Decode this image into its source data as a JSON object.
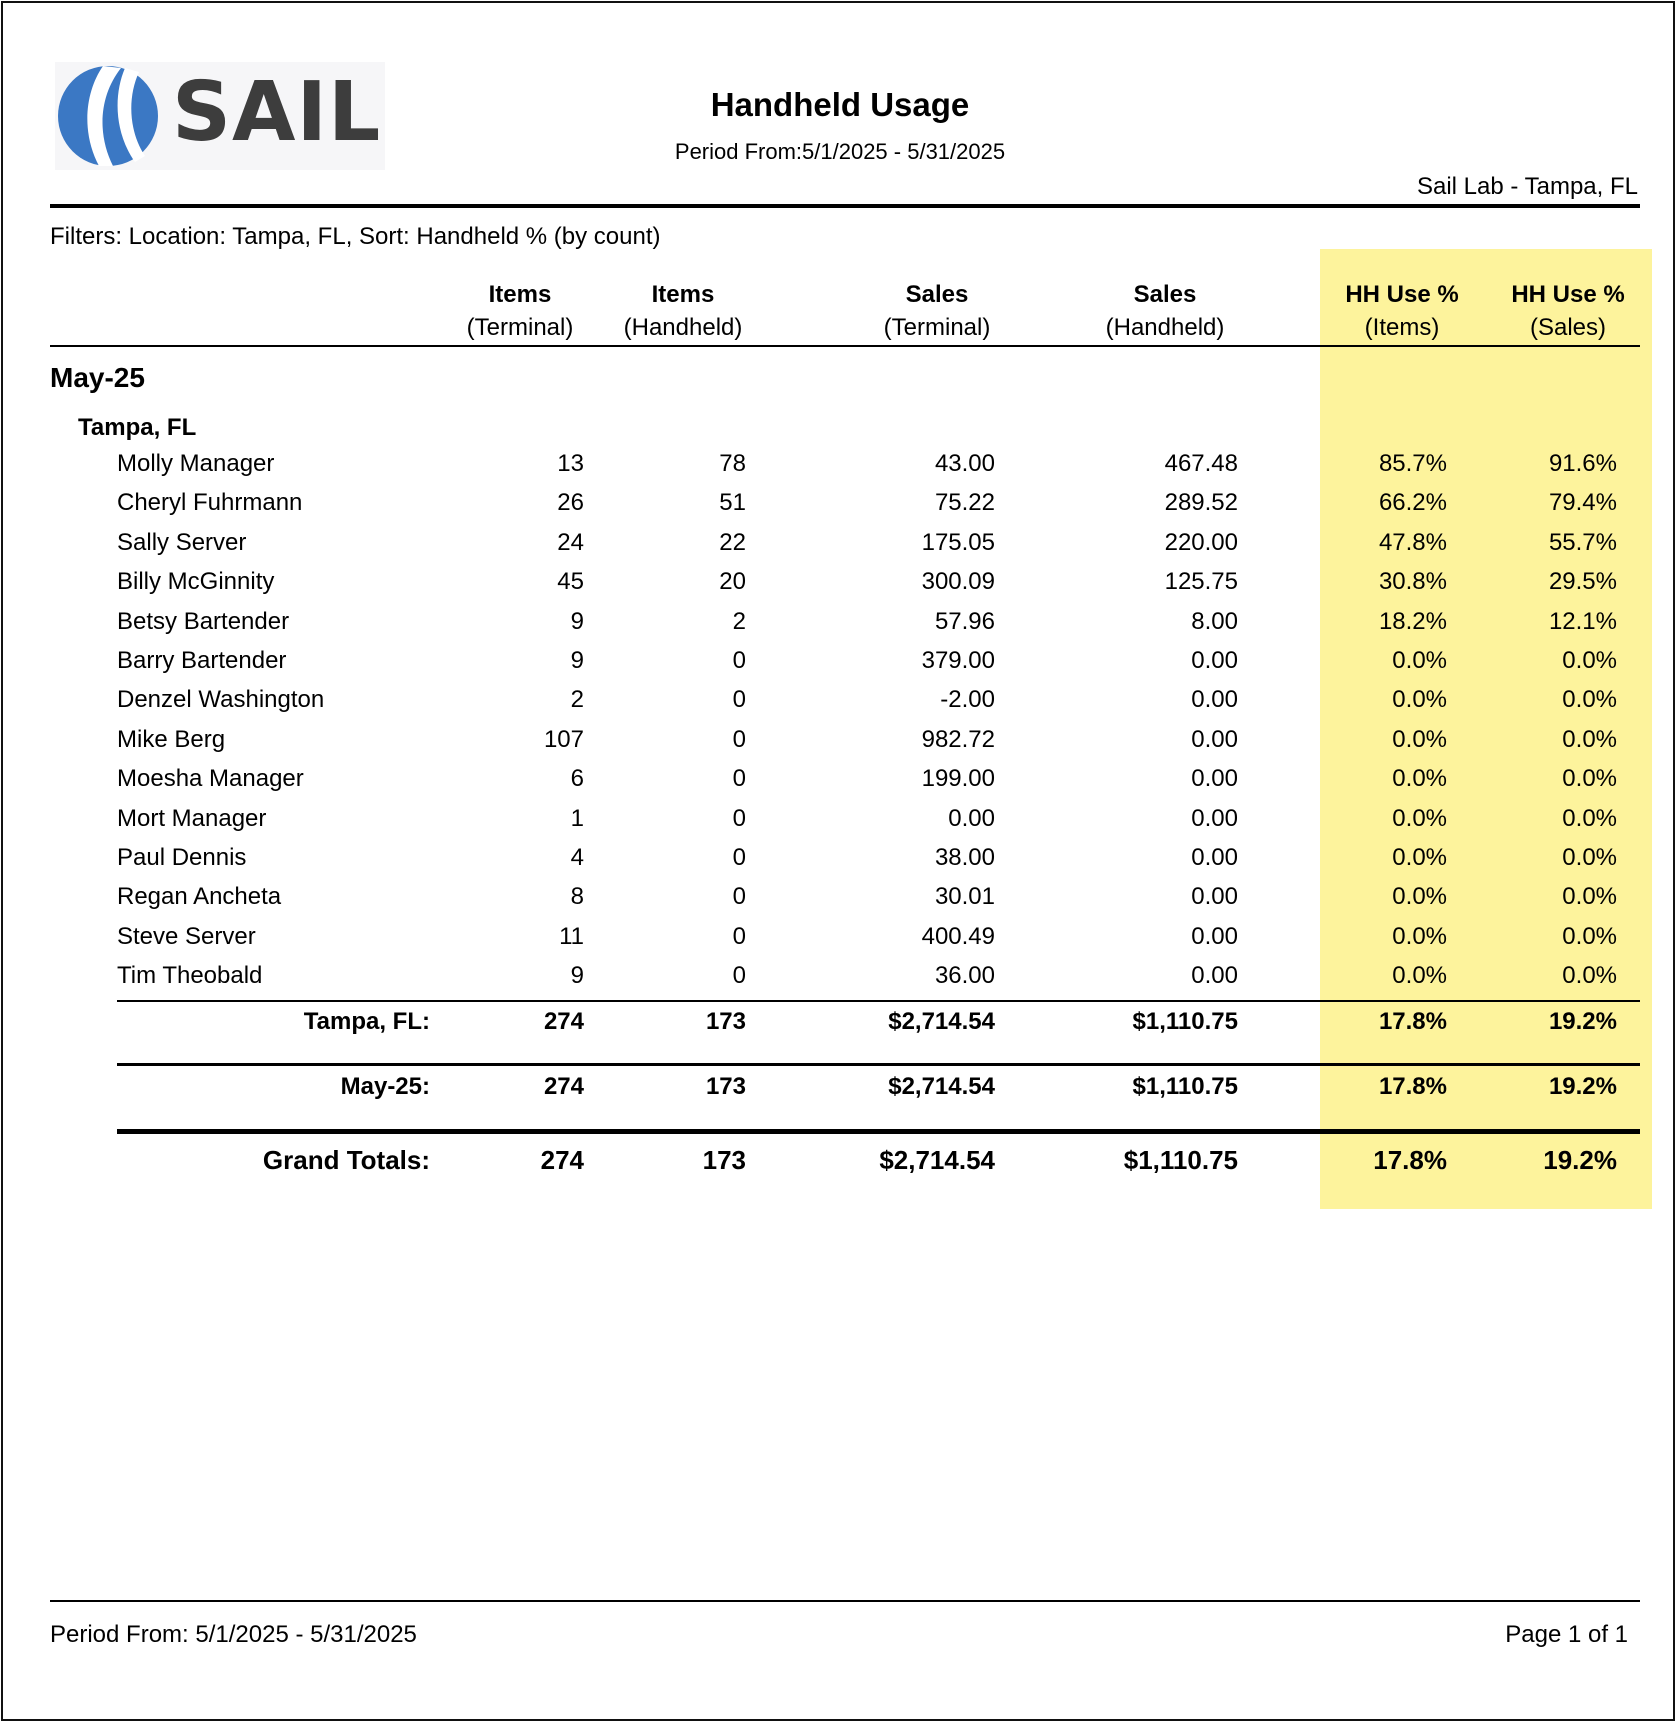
{
  "logo": {
    "text": "SAIL",
    "mark_color": "#3b78c4",
    "text_color": "#3d3d3d"
  },
  "header": {
    "title": "Handheld Usage",
    "period": "Period From:5/1/2025 - 5/31/2025",
    "location": "Sail Lab - Tampa, FL"
  },
  "filters": "Filters: Location: Tampa, FL, Sort: Handheld % (by count)",
  "highlight_color": "#fdf39c",
  "columns": [
    {
      "title": "Items",
      "sub": "(Terminal)"
    },
    {
      "title": "Items",
      "sub": "(Handheld)"
    },
    {
      "title": "Sales",
      "sub": "(Terminal)"
    },
    {
      "title": "Sales",
      "sub": "(Handheld)"
    },
    {
      "title": "HH Use %",
      "sub": "(Items)"
    },
    {
      "title": "HH Use %",
      "sub": "(Sales)"
    }
  ],
  "group_month": "May-25",
  "group_location": "Tampa, FL",
  "rows": [
    {
      "name": "Molly Manager",
      "items_terminal": "13",
      "items_handheld": "78",
      "sales_terminal": "43.00",
      "sales_handheld": "467.48",
      "hh_items": "85.7%",
      "hh_sales": "91.6%"
    },
    {
      "name": "Cheryl Fuhrmann",
      "items_terminal": "26",
      "items_handheld": "51",
      "sales_terminal": "75.22",
      "sales_handheld": "289.52",
      "hh_items": "66.2%",
      "hh_sales": "79.4%"
    },
    {
      "name": "Sally Server",
      "items_terminal": "24",
      "items_handheld": "22",
      "sales_terminal": "175.05",
      "sales_handheld": "220.00",
      "hh_items": "47.8%",
      "hh_sales": "55.7%"
    },
    {
      "name": "Billy McGinnity",
      "items_terminal": "45",
      "items_handheld": "20",
      "sales_terminal": "300.09",
      "sales_handheld": "125.75",
      "hh_items": "30.8%",
      "hh_sales": "29.5%"
    },
    {
      "name": "Betsy Bartender",
      "items_terminal": "9",
      "items_handheld": "2",
      "sales_terminal": "57.96",
      "sales_handheld": "8.00",
      "hh_items": "18.2%",
      "hh_sales": "12.1%"
    },
    {
      "name": "Barry Bartender",
      "items_terminal": "9",
      "items_handheld": "0",
      "sales_terminal": "379.00",
      "sales_handheld": "0.00",
      "hh_items": "0.0%",
      "hh_sales": "0.0%"
    },
    {
      "name": "Denzel Washington",
      "items_terminal": "2",
      "items_handheld": "0",
      "sales_terminal": "-2.00",
      "sales_handheld": "0.00",
      "hh_items": "0.0%",
      "hh_sales": "0.0%"
    },
    {
      "name": "Mike Berg",
      "items_terminal": "107",
      "items_handheld": "0",
      "sales_terminal": "982.72",
      "sales_handheld": "0.00",
      "hh_items": "0.0%",
      "hh_sales": "0.0%"
    },
    {
      "name": "Moesha Manager",
      "items_terminal": "6",
      "items_handheld": "0",
      "sales_terminal": "199.00",
      "sales_handheld": "0.00",
      "hh_items": "0.0%",
      "hh_sales": "0.0%"
    },
    {
      "name": "Mort Manager",
      "items_terminal": "1",
      "items_handheld": "0",
      "sales_terminal": "0.00",
      "sales_handheld": "0.00",
      "hh_items": "0.0%",
      "hh_sales": "0.0%"
    },
    {
      "name": "Paul Dennis",
      "items_terminal": "4",
      "items_handheld": "0",
      "sales_terminal": "38.00",
      "sales_handheld": "0.00",
      "hh_items": "0.0%",
      "hh_sales": "0.0%"
    },
    {
      "name": "Regan Ancheta",
      "items_terminal": "8",
      "items_handheld": "0",
      "sales_terminal": "30.01",
      "sales_handheld": "0.00",
      "hh_items": "0.0%",
      "hh_sales": "0.0%"
    },
    {
      "name": "Steve Server",
      "items_terminal": "11",
      "items_handheld": "0",
      "sales_terminal": "400.49",
      "sales_handheld": "0.00",
      "hh_items": "0.0%",
      "hh_sales": "0.0%"
    },
    {
      "name": "Tim Theobald",
      "items_terminal": "9",
      "items_handheld": "0",
      "sales_terminal": "36.00",
      "sales_handheld": "0.00",
      "hh_items": "0.0%",
      "hh_sales": "0.0%"
    }
  ],
  "totals": {
    "location": {
      "label": "Tampa, FL:",
      "items_terminal": "274",
      "items_handheld": "173",
      "sales_terminal": "$2,714.54",
      "sales_handheld": "$1,110.75",
      "hh_items": "17.8%",
      "hh_sales": "19.2%"
    },
    "month": {
      "label": "May-25:",
      "items_terminal": "274",
      "items_handheld": "173",
      "sales_terminal": "$2,714.54",
      "sales_handheld": "$1,110.75",
      "hh_items": "17.8%",
      "hh_sales": "19.2%"
    },
    "grand": {
      "label": "Grand Totals:",
      "items_terminal": "274",
      "items_handheld": "173",
      "sales_terminal": "$2,714.54",
      "sales_handheld": "$1,110.75",
      "hh_items": "17.8%",
      "hh_sales": "19.2%"
    }
  },
  "footer": {
    "period": "Period From: 5/1/2025 - 5/31/2025",
    "page": "Page 1 of 1"
  }
}
